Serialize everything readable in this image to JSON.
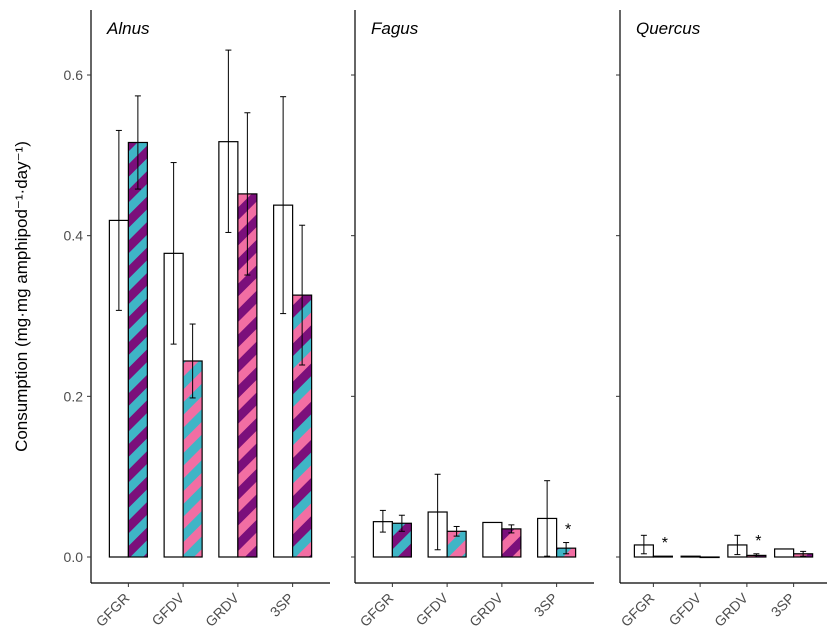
{
  "chart_data": {
    "type": "bar",
    "ylabel": "Consumption (mg·mg amphipod⁻¹·day⁻¹)",
    "ylim": [
      0,
      0.66
    ],
    "yticks": [
      0.0,
      0.2,
      0.4,
      0.6
    ],
    "ytick_labels": [
      "0.0",
      "0.2",
      "0.4",
      "0.6"
    ],
    "categories": [
      "GFGR",
      "GFDV",
      "GRDV",
      "3SP"
    ],
    "grid": false,
    "legend": "none",
    "colors": {
      "purple": "#7b0f7b",
      "cyan": "#3fb5c6",
      "pink": "#f26ea3",
      "outline": "#000000",
      "open_fill": "#ffffff"
    },
    "patterns": {
      "GFGR": [
        "cyan",
        "purple"
      ],
      "GFDV": [
        "cyan",
        "pink"
      ],
      "GRDV": [
        "pink",
        "purple"
      ],
      "3SP": [
        "cyan",
        "pink",
        "purple"
      ]
    },
    "panels": [
      {
        "title": "Alnus",
        "values": {
          "open": [
            0.419,
            0.378,
            0.517,
            0.438
          ],
          "hatched": [
            0.516,
            0.244,
            0.452,
            0.326
          ]
        },
        "errors": {
          "open": [
            [
              0.307,
              0.531
            ],
            [
              0.265,
              0.491
            ],
            [
              0.404,
              0.631
            ],
            [
              0.303,
              0.573
            ]
          ],
          "hatched": [
            [
              0.458,
              0.574
            ],
            [
              0.198,
              0.29
            ],
            [
              0.351,
              0.553
            ],
            [
              0.239,
              0.413
            ]
          ]
        },
        "significance": [
          "",
          "",
          "",
          ""
        ]
      },
      {
        "title": "Fagus",
        "values": {
          "open": [
            0.044,
            0.056,
            0.043,
            0.048
          ],
          "hatched": [
            0.042,
            0.032,
            0.035,
            0.011
          ]
        },
        "errors": {
          "open": [
            [
              0.031,
              0.058
            ],
            [
              0.009,
              0.103
            ],
            [
              0.043,
              0.043
            ],
            [
              0.001,
              0.095
            ]
          ],
          "hatched": [
            [
              0.032,
              0.052
            ],
            [
              0.026,
              0.038
            ],
            [
              0.03,
              0.04
            ],
            [
              0.004,
              0.018
            ]
          ]
        },
        "significance": [
          "",
          "",
          "",
          "*"
        ]
      },
      {
        "title": "Quercus",
        "values": {
          "open": [
            0.015,
            0.001,
            0.015,
            0.01
          ],
          "hatched": [
            0.001,
            0.0,
            0.002,
            0.004
          ]
        },
        "errors": {
          "open": [
            [
              0.004,
              0.027
            ],
            [
              0.001,
              0.001
            ],
            [
              0.003,
              0.027
            ],
            [
              0.01,
              0.01
            ]
          ],
          "hatched": [
            [
              0.001,
              0.001
            ],
            [
              0.0,
              0.0
            ],
            [
              0.0,
              0.004
            ],
            [
              0.001,
              0.007
            ]
          ]
        },
        "significance": [
          "*",
          "",
          "*",
          ""
        ]
      }
    ]
  }
}
